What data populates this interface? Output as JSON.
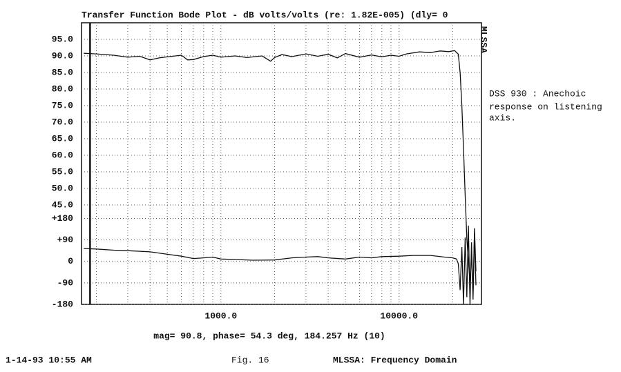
{
  "chart_data": {
    "type": "line",
    "title": "Transfer Function Bode Plot - dB volts/volts (re: 1.82E-005) (dly= 0",
    "side_label": "MLSSA",
    "annotation": [
      "DSS 930 : Anechoic",
      "response on listening",
      "axis."
    ],
    "cursor_readout": "mag= 90.8, phase= 54.3 deg, 184.257 Hz (10)",
    "cursor_hz": 184.257,
    "footer_left": "1-14-93 10:55 AM",
    "footer_center": "Fig. 16",
    "footer_right": "MLSSA: Frequency Domain",
    "log_x": true,
    "grid": true,
    "xlim": [
      165,
      29000
    ],
    "xticks": [
      {
        "value": 1000,
        "label": "1000.0"
      },
      {
        "value": 10000,
        "label": "10000.0"
      }
    ],
    "x_minor_grid": [
      200,
      300,
      400,
      500,
      600,
      700,
      800,
      900,
      2000,
      3000,
      4000,
      5000,
      6000,
      7000,
      8000,
      9000,
      20000
    ],
    "ylim": [
      15,
      100
    ],
    "yticks": [
      {
        "value": 95,
        "label": "95.0"
      },
      {
        "value": 90,
        "label": "90.0"
      },
      {
        "value": 85,
        "label": "85.0"
      },
      {
        "value": 80,
        "label": "80.0"
      },
      {
        "value": 75,
        "label": "75.0"
      },
      {
        "value": 70,
        "label": "70.0"
      },
      {
        "value": 65,
        "label": "65.0"
      },
      {
        "value": 60,
        "label": "60.0"
      },
      {
        "value": 55,
        "label": "55.0"
      },
      {
        "value": 50,
        "label": "50.0"
      },
      {
        "value": 45,
        "label": "45.0"
      }
    ],
    "y2lim": [
      -180,
      1000
    ],
    "y2ticks": [
      {
        "value": 180,
        "label": "+180"
      },
      {
        "value": 90,
        "label": "+90"
      },
      0,
      -90,
      -180
    ],
    "series": [
      {
        "color": "#111111",
        "x": [
          170,
          200,
          250,
          300,
          350,
          400,
          450,
          500,
          600,
          650,
          700,
          800,
          900,
          1000,
          1200,
          1400,
          1700,
          1900,
          2000,
          2200,
          2500,
          3000,
          3500,
          4000,
          4500,
          5000,
          6000,
          7000,
          8000,
          9000,
          10000,
          11000,
          13000,
          15000,
          17000,
          19000,
          20500,
          21500,
          22000,
          22500,
          23000,
          23500,
          24000,
          24500,
          25000,
          25500,
          26000,
          26500,
          27000
        ],
        "values": [
          90.8,
          90.6,
          90.2,
          89.6,
          89.9,
          88.8,
          89.4,
          89.7,
          90.2,
          88.8,
          88.9,
          89.8,
          90.2,
          89.6,
          90.0,
          89.5,
          90.0,
          88.4,
          89.5,
          90.4,
          89.8,
          90.6,
          89.9,
          90.5,
          89.4,
          90.7,
          89.6,
          90.3,
          89.7,
          90.2,
          89.9,
          90.6,
          91.2,
          91.0,
          91.5,
          91.3,
          91.6,
          90.5,
          85,
          75,
          62,
          48,
          35,
          28,
          22,
          30,
          18,
          38,
          25
        ]
      },
      {
        "color": "#111111",
        "axis": "y2",
        "x": [
          170,
          200,
          250,
          300,
          400,
          500,
          600,
          700,
          800,
          900,
          1000,
          1200,
          1500,
          2000,
          2500,
          3000,
          3500,
          4000,
          5000,
          6000,
          7000,
          8000,
          10000,
          12000,
          15000,
          18000,
          20000,
          21000,
          21500,
          22000,
          22500,
          23000,
          23500,
          24000,
          24500,
          25000,
          25500,
          26000,
          26500,
          27000
        ],
        "values": [
          54,
          52,
          47,
          45,
          40,
          30,
          22,
          12,
          15,
          18,
          10,
          8,
          5,
          6,
          15,
          18,
          20,
          15,
          10,
          18,
          15,
          20,
          22,
          25,
          25,
          18,
          15,
          10,
          -10,
          -120,
          60,
          -180,
          100,
          -150,
          150,
          -180,
          80,
          -160,
          120,
          -100
        ]
      }
    ]
  }
}
